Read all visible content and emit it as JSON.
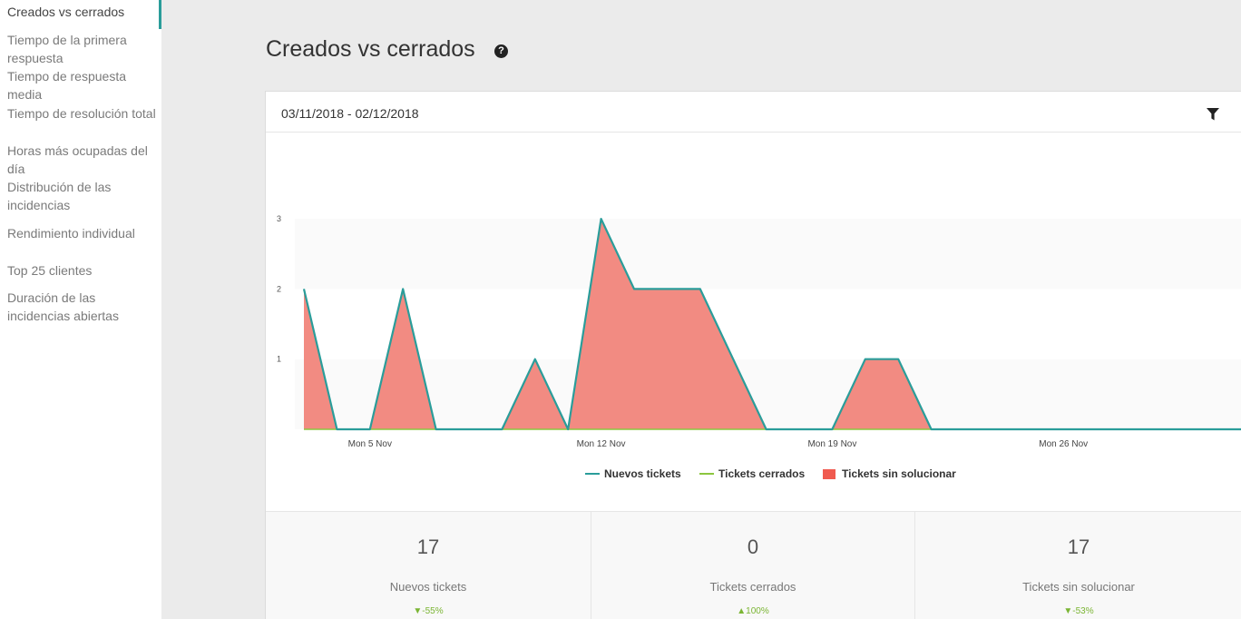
{
  "sidebar": {
    "items": [
      {
        "label": "Creados vs cerrados",
        "active": true
      },
      {
        "label": "Tiempo de la primera respuesta"
      },
      {
        "label": "Tiempo de respuesta media"
      },
      {
        "label": "Tiempo de resolución total"
      },
      {
        "label": "Horas más ocupadas del día"
      },
      {
        "label": "Distribución de las incidencias"
      },
      {
        "label": "Rendimiento individual"
      },
      {
        "label": "Top 25 clientes"
      },
      {
        "label": "Duración de las incidencias abiertas"
      }
    ]
  },
  "page": {
    "title": "Creados vs cerrados",
    "help_icon": "question-circle-icon"
  },
  "card": {
    "date_range": "03/11/2018 - 02/12/2018",
    "filter_icon": "filter-funnel-icon"
  },
  "colors": {
    "accent": "#2a9d9a",
    "nuevos_line": "#2a9d9a",
    "cerrados_line": "#8cc63f",
    "sin_solucionar_fill": "#f28b82",
    "sin_solucionar_legend": "#f05a4f",
    "positive_delta": "#7bb534"
  },
  "chart_data": {
    "type": "area",
    "x_start": "2018-11-03",
    "x_end": "2018-12-02",
    "x_ticks": [
      {
        "date": "2018-11-05",
        "label": "Mon 5 Nov"
      },
      {
        "date": "2018-11-12",
        "label": "Mon 12 Nov"
      },
      {
        "date": "2018-11-19",
        "label": "Mon 19 Nov"
      },
      {
        "date": "2018-11-26",
        "label": "Mon 26 Nov"
      }
    ],
    "y_ticks": [
      1,
      2,
      3
    ],
    "ylim": [
      0,
      3
    ],
    "series": [
      {
        "name": "Nuevos tickets",
        "kind": "line",
        "values": [
          2,
          0,
          0,
          2,
          0,
          0,
          0,
          1,
          0,
          3,
          2,
          2,
          2,
          1,
          0,
          0,
          0,
          1,
          1,
          0,
          0,
          0,
          0,
          0,
          0,
          0,
          0,
          0,
          0,
          0
        ]
      },
      {
        "name": "Tickets cerrados",
        "kind": "line",
        "values": [
          0,
          0,
          0,
          0,
          0,
          0,
          0,
          0,
          0,
          0,
          0,
          0,
          0,
          0,
          0,
          0,
          0,
          0,
          0,
          0,
          0,
          0,
          0,
          0,
          0,
          0,
          0,
          0,
          0,
          0
        ]
      },
      {
        "name": "Tickets sin solucionar",
        "kind": "area",
        "values": [
          2,
          0,
          0,
          2,
          0,
          0,
          0,
          1,
          0,
          3,
          2,
          2,
          2,
          1,
          0,
          0,
          0,
          1,
          1,
          0,
          0,
          0,
          0,
          0,
          0,
          0,
          0,
          0,
          0,
          0
        ]
      }
    ]
  },
  "stats": [
    {
      "value": "17",
      "label": "Nuevos tickets",
      "delta": "▼-55%"
    },
    {
      "value": "0",
      "label": "Tickets cerrados",
      "delta": "▲100%"
    },
    {
      "value": "17",
      "label": "Tickets sin solucionar",
      "delta": "▼-53%"
    }
  ]
}
